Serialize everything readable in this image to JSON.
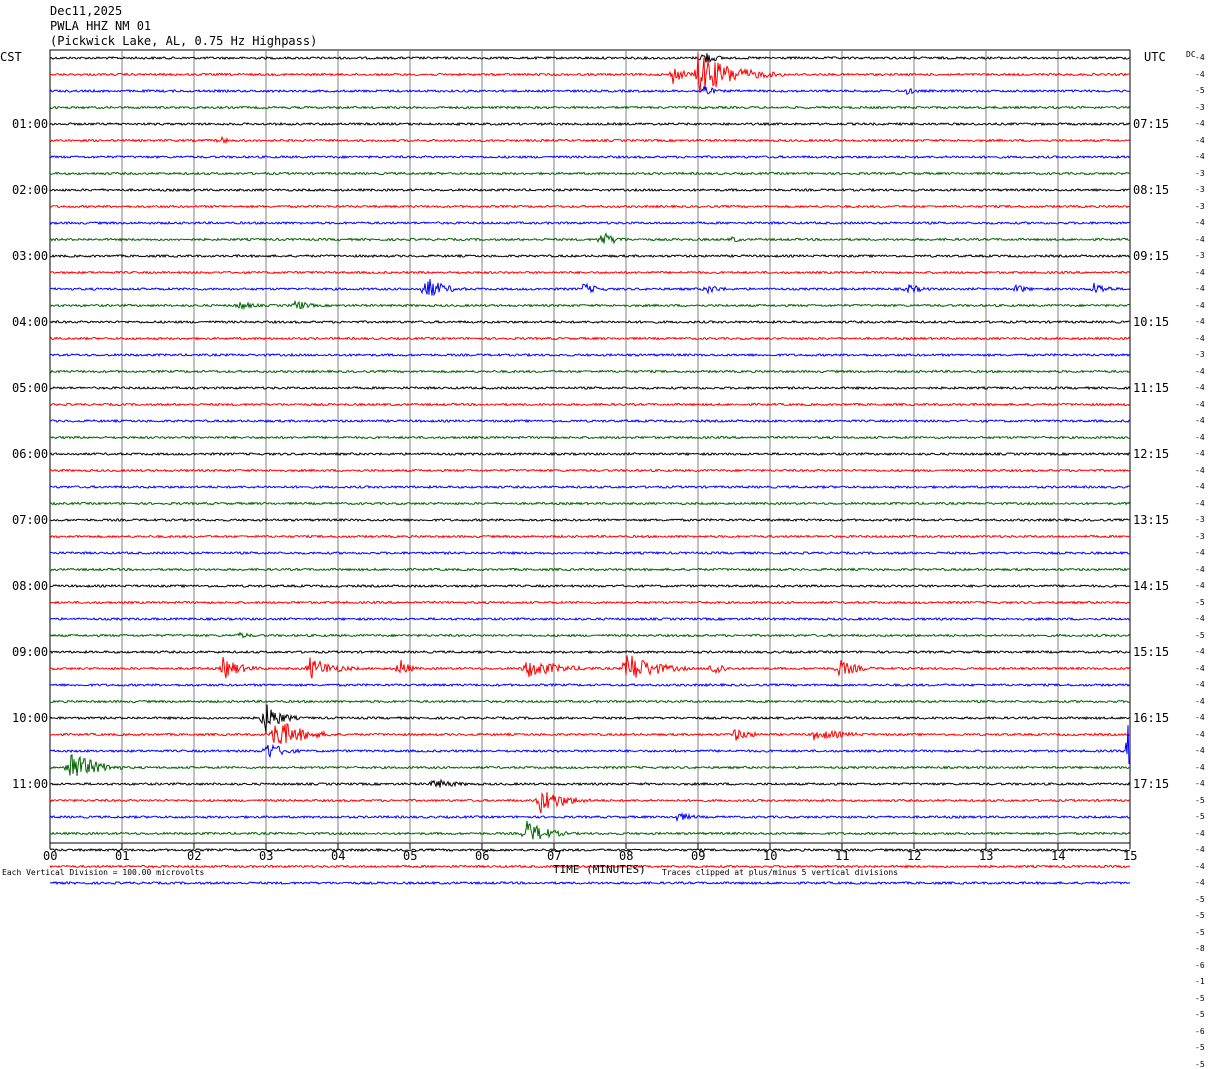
{
  "header": {
    "date": "Dec11,2025",
    "station": "PWLA HHZ NM 01",
    "location": "(Pickwick Lake, AL, 0.75 Hz Highpass)"
  },
  "left_tz": "CST",
  "right_tz": "UTC",
  "dc_label": "DC",
  "footer": {
    "scale_note": "Each Vertical Division =  100.00 microvolts",
    "xlabel": "TIME (MINUTES)",
    "clip_note": "Traces clipped at plus/minus 5 vertical divisions"
  },
  "colors": {
    "trace_cycle": [
      "#000000",
      "#ff0000",
      "#0000ff",
      "#006400"
    ],
    "grid": "#808080"
  },
  "chart_data": {
    "type": "line",
    "x_ticks": [
      "00",
      "01",
      "02",
      "03",
      "04",
      "05",
      "06",
      "07",
      "08",
      "09",
      "10",
      "11",
      "12",
      "13",
      "14",
      "15"
    ],
    "xlim": [
      0,
      15
    ],
    "left_hour_labels": [
      "01:00",
      "02:00",
      "03:00",
      "04:00",
      "05:00",
      "06:00",
      "07:00",
      "08:00",
      "09:00",
      "10:00",
      "11:00"
    ],
    "right_hour_labels": [
      "07:15",
      "08:15",
      "09:15",
      "10:15",
      "11:15",
      "12:15",
      "13:15",
      "14:15",
      "15:15",
      "16:15",
      "17:15"
    ],
    "dc_offsets": [
      "-4",
      "-4",
      "-5",
      "-3",
      "-4",
      "-4",
      "-4",
      "-3",
      "-3",
      "-3",
      "-4",
      "-4",
      "-3",
      "-4",
      "-4",
      "-4",
      "-4",
      "-4",
      "-3",
      "-4",
      "-4",
      "-4",
      "-4",
      "-4",
      "-4",
      "-4",
      "-4",
      "-4",
      "-3",
      "-3",
      "-4",
      "-4",
      "-4",
      "-5",
      "-4",
      "-5",
      "-4",
      "-4",
      "-4",
      "-4",
      "-4",
      "-4",
      "-4",
      "-4",
      "-4",
      "-5",
      "-5",
      "-4",
      "-4",
      "-4",
      "-4",
      "-5",
      "-5",
      "-5",
      "-8",
      "-6",
      "-1",
      "-5",
      "-5",
      "-6",
      "-5",
      "-5"
    ],
    "events": [
      {
        "row": 1,
        "minute": 9.0,
        "amp": 22,
        "dur": 1.2
      },
      {
        "row": 1,
        "minute": 8.65,
        "amp": 10,
        "dur": 0.4
      },
      {
        "row": 0,
        "minute": 9.05,
        "amp": 10,
        "dur": 0.4
      },
      {
        "row": 2,
        "minute": 9.05,
        "amp": 10,
        "dur": 0.3
      },
      {
        "row": 2,
        "minute": 11.9,
        "amp": 4,
        "dur": 0.4
      },
      {
        "row": 5,
        "minute": 2.35,
        "amp": 5,
        "dur": 0.3
      },
      {
        "row": 11,
        "minute": 7.65,
        "amp": 9,
        "dur": 0.5
      },
      {
        "row": 11,
        "minute": 9.45,
        "amp": 4,
        "dur": 0.4
      },
      {
        "row": 14,
        "minute": 5.2,
        "amp": 14,
        "dur": 0.6
      },
      {
        "row": 14,
        "minute": 7.4,
        "amp": 6,
        "dur": 0.6
      },
      {
        "row": 14,
        "minute": 9.1,
        "amp": 6,
        "dur": 0.5
      },
      {
        "row": 14,
        "minute": 11.9,
        "amp": 6,
        "dur": 0.5
      },
      {
        "row": 14,
        "minute": 13.4,
        "amp": 6,
        "dur": 0.4
      },
      {
        "row": 14,
        "minute": 14.5,
        "amp": 7,
        "dur": 0.5
      },
      {
        "row": 15,
        "minute": 2.6,
        "amp": 5,
        "dur": 0.6
      },
      {
        "row": 15,
        "minute": 3.4,
        "amp": 6,
        "dur": 0.5
      },
      {
        "row": 35,
        "minute": 2.6,
        "amp": 4,
        "dur": 0.5
      },
      {
        "row": 37,
        "minute": 2.4,
        "amp": 12,
        "dur": 0.6
      },
      {
        "row": 37,
        "minute": 3.6,
        "amp": 12,
        "dur": 0.8
      },
      {
        "row": 37,
        "minute": 4.85,
        "amp": 12,
        "dur": 0.3
      },
      {
        "row": 37,
        "minute": 6.6,
        "amp": 10,
        "dur": 1.2
      },
      {
        "row": 37,
        "minute": 8.0,
        "amp": 18,
        "dur": 0.9
      },
      {
        "row": 37,
        "minute": 9.2,
        "amp": 12,
        "dur": 0.3
      },
      {
        "row": 37,
        "minute": 10.95,
        "amp": 10,
        "dur": 0.6
      },
      {
        "row": 40,
        "minute": 2.95,
        "amp": 20,
        "dur": 0.5
      },
      {
        "row": 41,
        "minute": 3.1,
        "amp": 18,
        "dur": 0.9
      },
      {
        "row": 41,
        "minute": 9.5,
        "amp": 7,
        "dur": 0.6
      },
      {
        "row": 41,
        "minute": 10.6,
        "amp": 6,
        "dur": 1.2
      },
      {
        "row": 42,
        "minute": 3.0,
        "amp": 10,
        "dur": 0.6
      },
      {
        "row": 42,
        "minute": 14.97,
        "amp": 28,
        "dur": 0.12
      },
      {
        "row": 43,
        "minute": 0.25,
        "amp": 20,
        "dur": 0.8
      },
      {
        "row": 44,
        "minute": 5.3,
        "amp": 6,
        "dur": 0.8
      },
      {
        "row": 45,
        "minute": 6.8,
        "amp": 14,
        "dur": 0.8
      },
      {
        "row": 46,
        "minute": 8.7,
        "amp": 5,
        "dur": 0.6
      },
      {
        "row": 47,
        "minute": 6.6,
        "amp": 14,
        "dur": 0.7
      }
    ]
  }
}
